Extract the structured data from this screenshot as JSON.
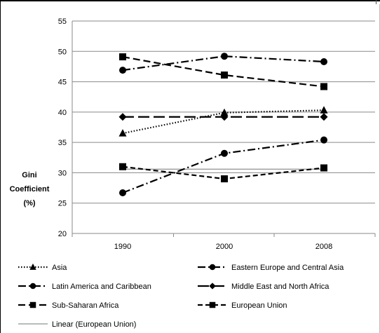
{
  "chart_data": {
    "type": "line",
    "title": "",
    "xlabel": "",
    "ylabel": [
      "Gini",
      "Coefficient",
      "(%)"
    ],
    "categories": [
      "1990",
      "2000",
      "2008"
    ],
    "ylim": [
      20,
      55
    ],
    "yticks": [
      20,
      25,
      30,
      35,
      40,
      45,
      50,
      55
    ],
    "grid": "horizontal",
    "legend_position": "bottom",
    "series": [
      {
        "name": "Asia",
        "values": [
          36.5,
          39.9,
          40.3
        ],
        "marker": "triangle",
        "dash": "dotted",
        "color": "#000000"
      },
      {
        "name": "Eastern Europe and Central Asia",
        "values": [
          26.7,
          33.2,
          35.4
        ],
        "marker": "circle",
        "dash": "dash-dot",
        "color": "#000000"
      },
      {
        "name": "Latin America and Caribbean",
        "values": [
          46.9,
          49.2,
          48.3
        ],
        "marker": "circle",
        "dash": "dash-dot",
        "color": "#000000"
      },
      {
        "name": "Middle East and North Africa",
        "values": [
          39.2,
          39.2,
          39.2
        ],
        "marker": "diamond",
        "dash": "long-dash",
        "color": "#000000"
      },
      {
        "name": "Sub-Saharan Africa",
        "values": [
          49.1,
          46.1,
          44.2
        ],
        "marker": "square",
        "dash": "dash",
        "color": "#000000"
      },
      {
        "name": "European Union",
        "values": [
          31.0,
          29.0,
          30.8
        ],
        "marker": "square",
        "dash": "short-dash",
        "color": "#000000"
      },
      {
        "name": "Linear (European Union)",
        "values": [
          30.6,
          30.6,
          30.6
        ],
        "marker": "none",
        "dash": "solid",
        "color": "#777777"
      }
    ],
    "legend": [
      {
        "label": "Asia",
        "series": 0
      },
      {
        "label": "Eastern Europe and Central Asia",
        "series": 1
      },
      {
        "label": "Latin America and Caribbean",
        "series": 2
      },
      {
        "label": "Middle East and North Africa",
        "series": 3
      },
      {
        "label": "Sub-Saharan Africa",
        "series": 4
      },
      {
        "label": "European Union",
        "series": 5
      },
      {
        "label": "Linear (European Union)",
        "series": 6
      }
    ]
  }
}
